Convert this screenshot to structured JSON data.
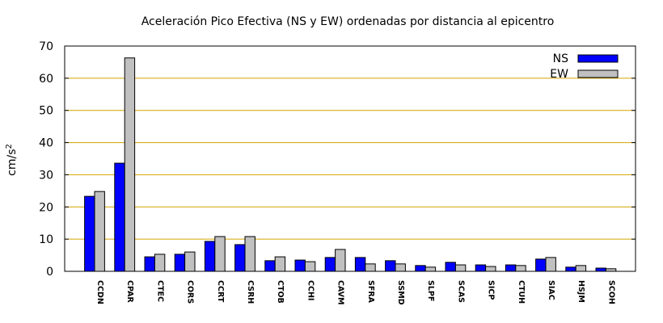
{
  "chart_data": {
    "type": "bar",
    "title": "Aceleración Pico Efectiva (NS y EW) ordenadas por distancia al epicentro",
    "xlabel": "",
    "ylabel": "cm/s",
    "ylabel_sup": "2",
    "ylim": [
      0,
      70
    ],
    "yticks": [
      0,
      10,
      20,
      30,
      40,
      50,
      60,
      70
    ],
    "grid": true,
    "legend_position": "top-right",
    "categories": [
      "CCDN",
      "CPAR",
      "CTEC",
      "CORS",
      "CCRT",
      "CSRH",
      "CTOB",
      "CCHI",
      "CAVM",
      "SFRA",
      "SSMD",
      "SLPF",
      "SCAS",
      "SICP",
      "CTUH",
      "SIAC",
      "HSJM",
      "SCOH"
    ],
    "series": [
      {
        "name": "NS",
        "color": "#0000ff",
        "values": [
          23.3,
          33.6,
          4.5,
          5.3,
          9.3,
          8.3,
          3.3,
          3.5,
          4.3,
          4.3,
          3.3,
          1.8,
          2.8,
          2.0,
          2.0,
          3.8,
          1.3,
          1.0
        ]
      },
      {
        "name": "EW",
        "color": "#c0c0c0",
        "values": [
          24.8,
          66.3,
          5.3,
          6.0,
          10.8,
          10.8,
          4.5,
          3.0,
          6.8,
          2.3,
          2.3,
          1.3,
          2.0,
          1.5,
          1.8,
          4.3,
          1.8,
          0.8
        ]
      }
    ]
  }
}
